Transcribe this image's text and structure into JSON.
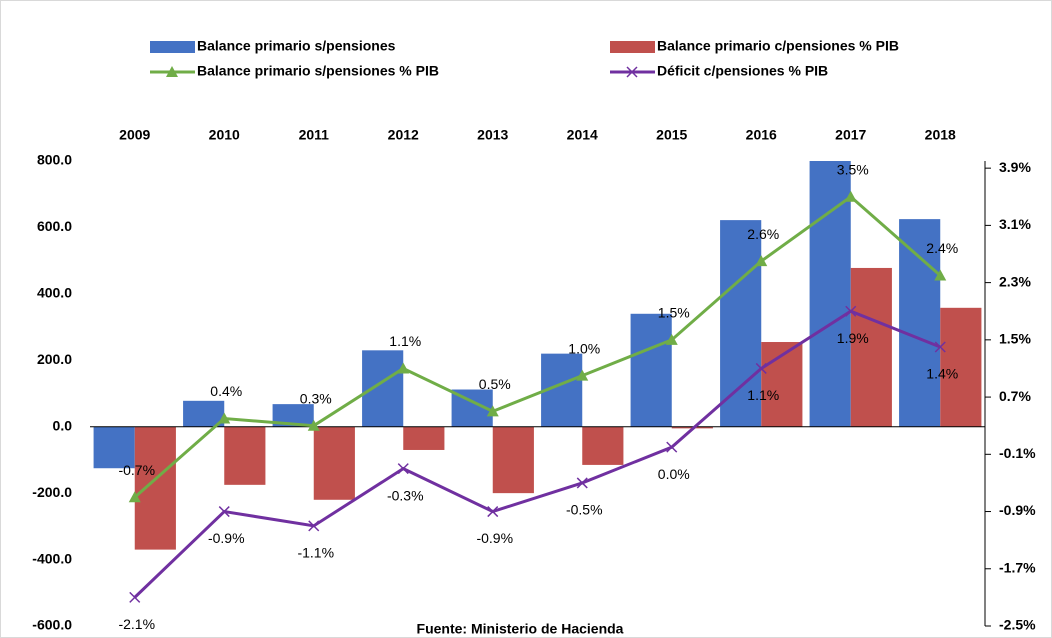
{
  "chart_data": {
    "type": "bar_line",
    "categories": [
      "2009",
      "2010",
      "2011",
      "2012",
      "2013",
      "2014",
      "2015",
      "2016",
      "2017",
      "2018"
    ],
    "series": [
      {
        "name": "Balance primario s/pensiones",
        "type": "bar",
        "color": "#4472c4",
        "values": [
          -125,
          78,
          68,
          230,
          112,
          220,
          340,
          622,
          800,
          625
        ]
      },
      {
        "name": "Balance primario  c/pensiones % PIB",
        "type": "bar",
        "color": "#c0504d",
        "values": [
          -370,
          -175,
          -220,
          -70,
          -200,
          -115,
          -5,
          255,
          478,
          358
        ]
      },
      {
        "name": "Balance primario  s/pensiones % PIB",
        "type": "line",
        "marker": "triangle",
        "axis": "y2",
        "color": "#70ad47",
        "values": [
          -0.7,
          0.4,
          0.3,
          1.1,
          0.5,
          1.0,
          1.5,
          2.6,
          3.5,
          2.4
        ],
        "value_labels": [
          "-0.7%",
          "0.4%",
          "0.3%",
          "1.1%",
          "0.5%",
          "1.0%",
          "1.5%",
          "2.6%",
          "3.5%",
          "2.4%"
        ]
      },
      {
        "name": "Déficit  c/pensiones % PIB",
        "type": "line",
        "marker": "x",
        "axis": "y2",
        "color": "#7030a0",
        "values": [
          -2.1,
          -0.9,
          -1.1,
          -0.3,
          -0.9,
          -0.5,
          0.0,
          1.1,
          1.9,
          1.4
        ],
        "value_labels": [
          "-2.1%",
          "-0.9%",
          "-1.1%",
          "-0.3%",
          "-0.9%",
          "-0.5%",
          "0.0%",
          "1.1%",
          "1.9%",
          "1.4%"
        ]
      }
    ],
    "ylim": [
      -600,
      800
    ],
    "yticks": [
      {
        "value": -600,
        "label": "-600.0"
      },
      {
        "value": -400,
        "label": "-400.0"
      },
      {
        "value": -200,
        "label": "-200.0"
      },
      {
        "value": 0,
        "label": "0.0"
      },
      {
        "value": 200,
        "label": "200.0"
      },
      {
        "value": 400,
        "label": "400.0"
      },
      {
        "value": 600,
        "label": "600.0"
      },
      {
        "value": 800,
        "label": "800.0"
      }
    ],
    "y2lim": [
      -2.5,
      4.0
    ],
    "y2ticks": [
      {
        "value": -2.5,
        "label": "-2.5%"
      },
      {
        "value": -1.7,
        "label": "-1.7%"
      },
      {
        "value": -0.9,
        "label": "-0.9%"
      },
      {
        "value": -0.1,
        "label": "-0.1%"
      },
      {
        "value": 0.7,
        "label": "0.7%"
      },
      {
        "value": 1.5,
        "label": "1.5%"
      },
      {
        "value": 2.3,
        "label": "2.3%"
      },
      {
        "value": 3.1,
        "label": "3.1%"
      },
      {
        "value": 3.9,
        "label": "3.9%"
      }
    ],
    "source": "Fuente: Ministerio de Hacienda"
  }
}
